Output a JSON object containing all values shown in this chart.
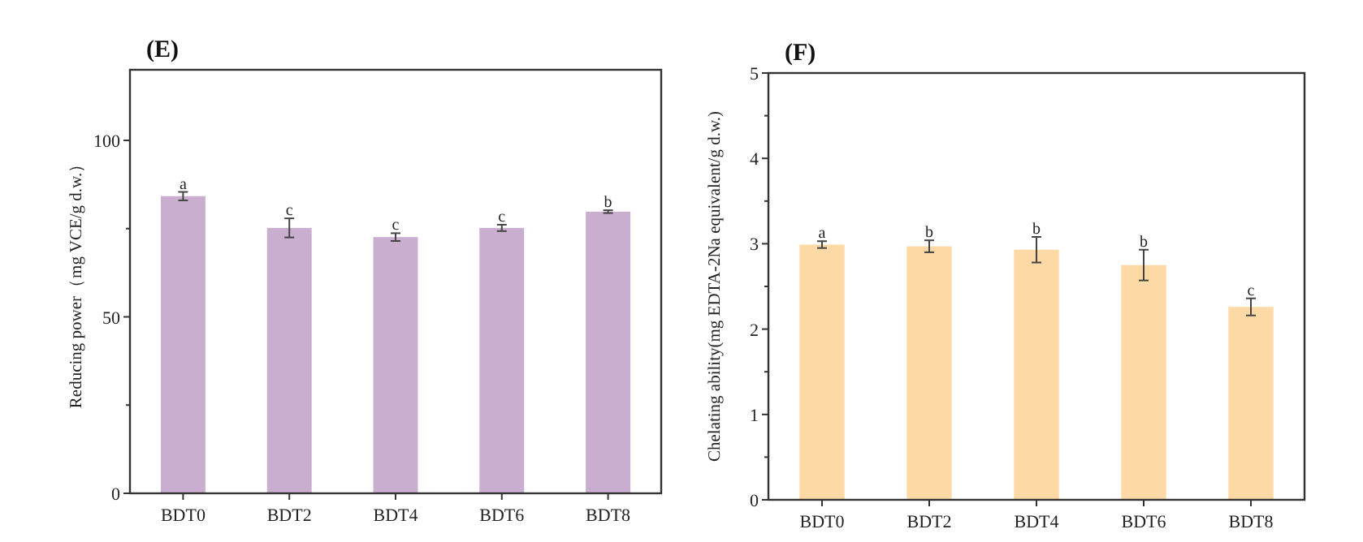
{
  "chart_data": [
    {
      "type": "bar",
      "title": "(E)",
      "ylabel": "Reducing power（mg VCE/g d.w.）",
      "categories": [
        "BDT0",
        "BDT2",
        "BDT4",
        "BDT6",
        "BDT8"
      ],
      "values": [
        84.2,
        75.2,
        72.6,
        75.2,
        79.8
      ],
      "errors": [
        1.2,
        2.7,
        1.1,
        0.9,
        0.4
      ],
      "color": "#c9aecf",
      "ylim": [
        0,
        120
      ],
      "yticks": [
        0,
        50,
        100
      ],
      "annotations": [
        {
          "text": "a",
          "x": "BDT0",
          "y": 85.4
        },
        {
          "text": "c",
          "x": "BDT2",
          "y": 77.9
        },
        {
          "text": "c",
          "x": "BDT4",
          "y": 73.7
        },
        {
          "text": "c",
          "x": "BDT6",
          "y": 76.1
        },
        {
          "text": "b",
          "x": "BDT8",
          "y": 80.2
        }
      ]
    },
    {
      "type": "bar",
      "title": "(F)",
      "ylabel": "Chelating ability(mg EDTA-2Na equivalent/g d.w.)",
      "categories": [
        "BDT0",
        "BDT2",
        "BDT4",
        "BDT6",
        "BDT8"
      ],
      "values": [
        2.99,
        2.97,
        2.93,
        2.75,
        2.26
      ],
      "errors": [
        0.04,
        0.07,
        0.15,
        0.18,
        0.1
      ],
      "color": "#fdd9a6",
      "ylim": [
        0,
        5
      ],
      "yticks": [
        0,
        1,
        2,
        3,
        4,
        5
      ],
      "annotations": [
        {
          "text": "a",
          "x": "BDT0",
          "y": 3.03
        },
        {
          "text": "b",
          "x": "BDT2",
          "y": 3.04
        },
        {
          "text": "b",
          "x": "BDT4",
          "y": 3.08
        },
        {
          "text": "b",
          "x": "BDT6",
          "y": 2.93
        },
        {
          "text": "c",
          "x": "BDT8",
          "y": 2.36
        }
      ]
    }
  ]
}
